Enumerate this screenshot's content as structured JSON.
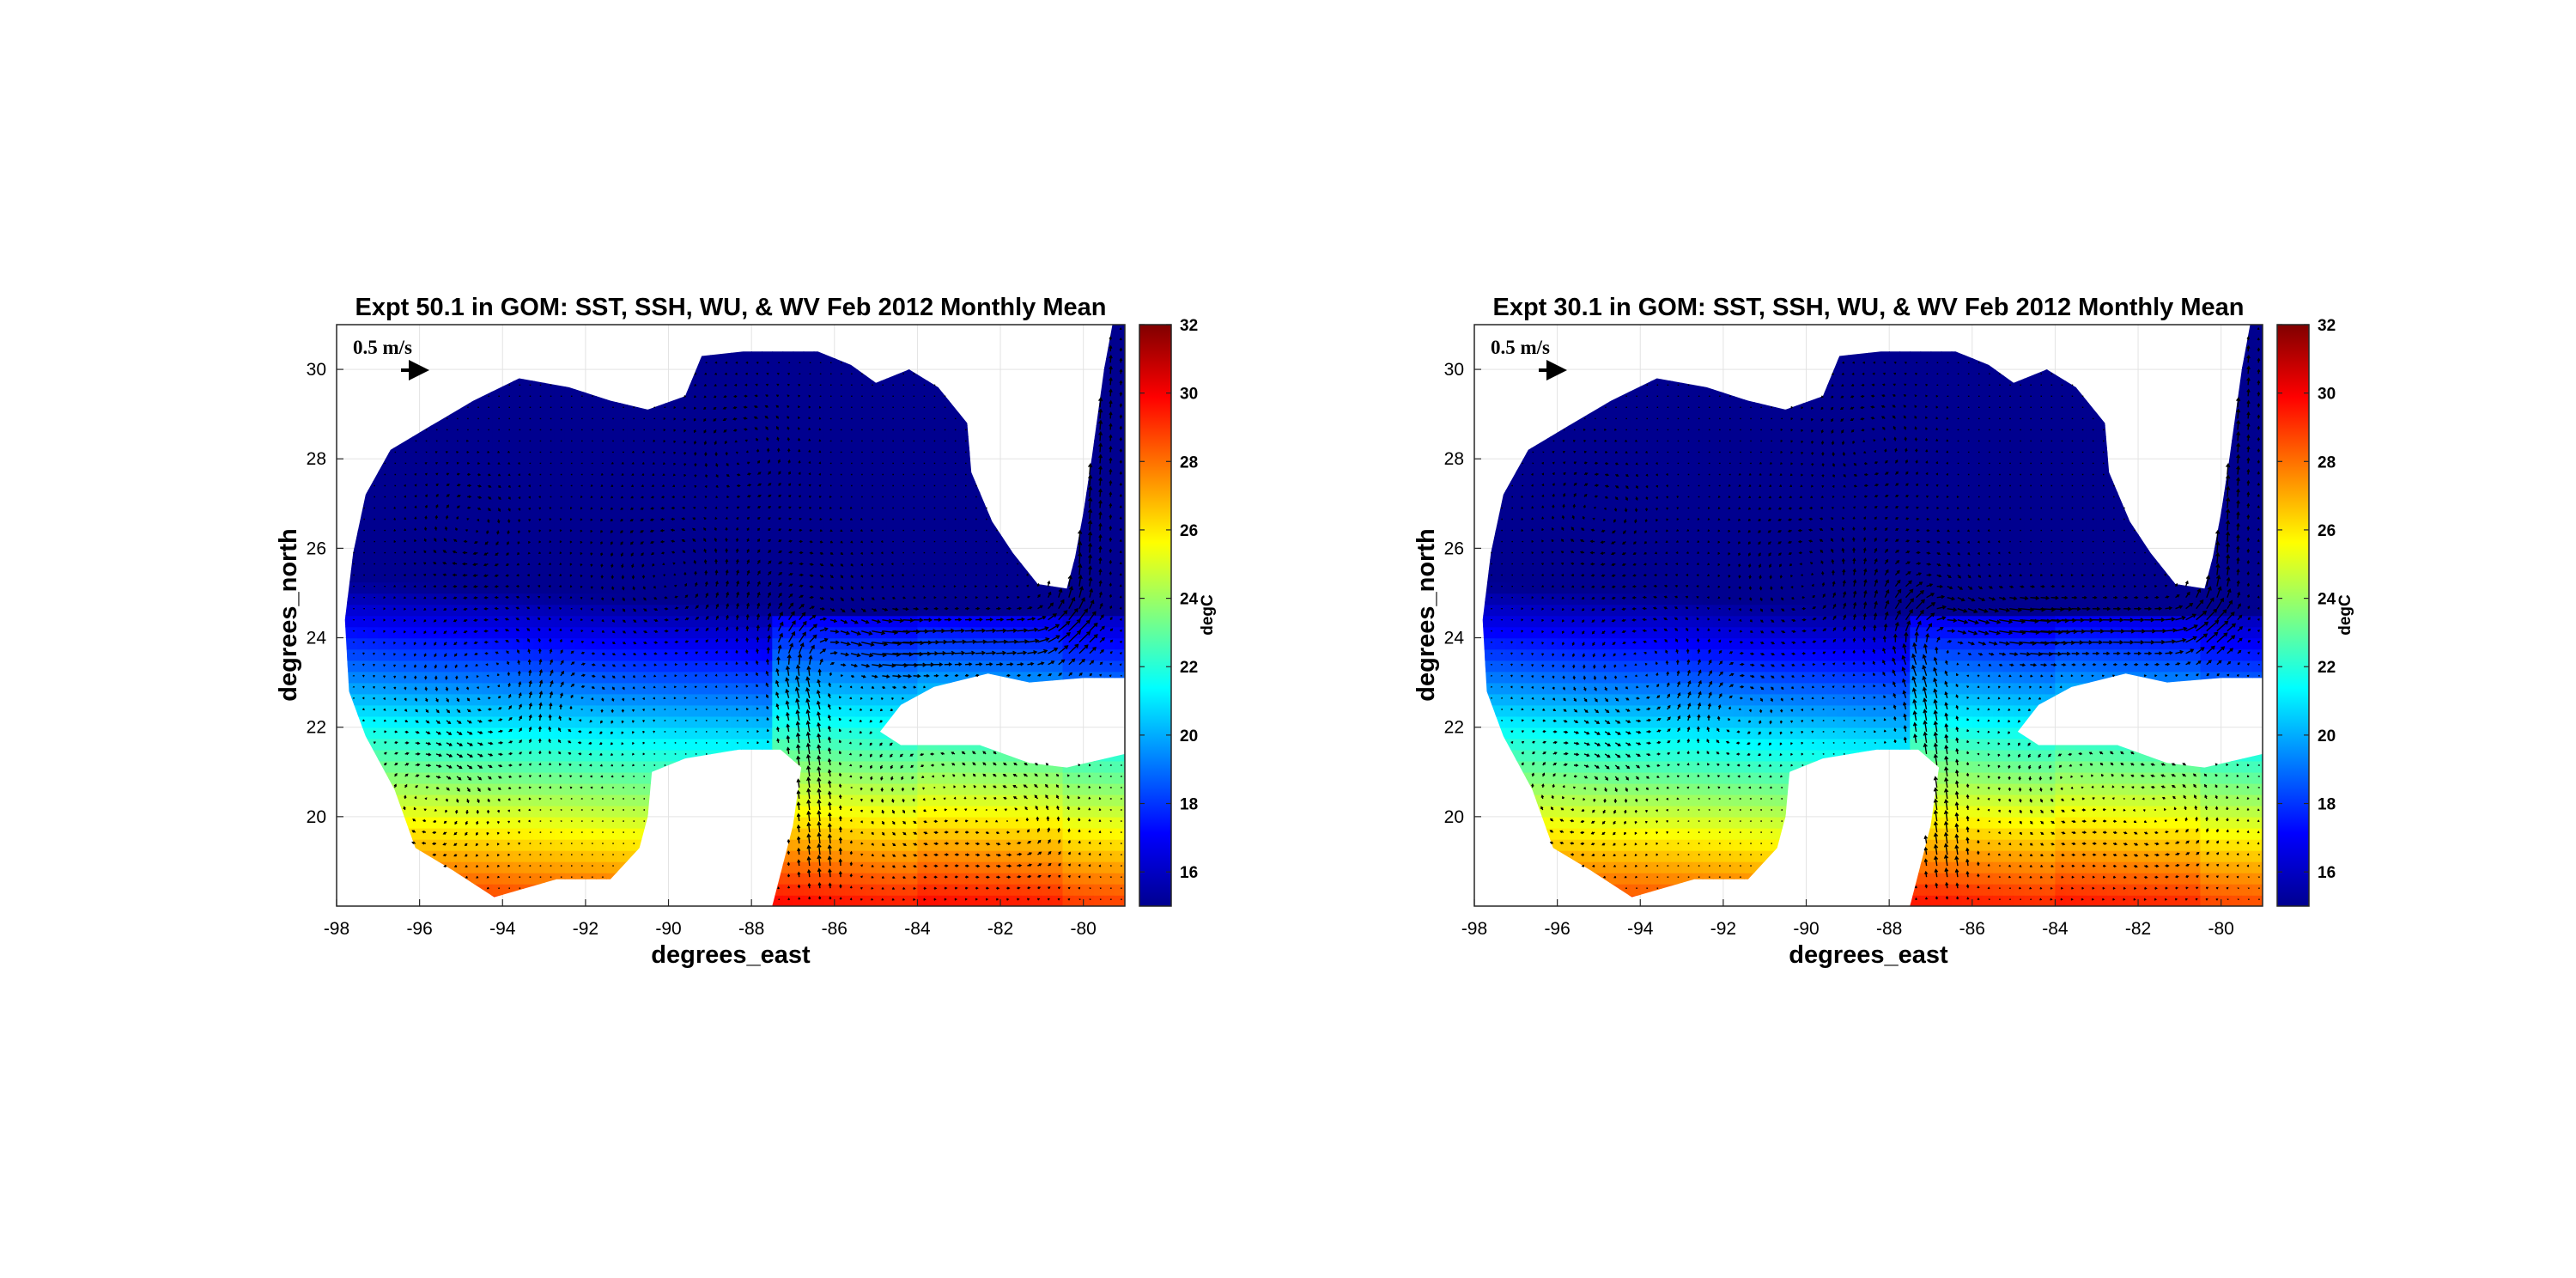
{
  "panels": [
    {
      "id": "expt50",
      "title": "Expt 50.1 in GOM: SST, SSH, WU, & WV Feb 2012 Monthly Mean",
      "scale_label": "0.5 m/s",
      "xlabel": "degrees_east",
      "ylabel": "degrees_north",
      "x_ticks": [
        "-98",
        "-96",
        "-94",
        "-92",
        "-90",
        "-88",
        "-86",
        "-84",
        "-82",
        "-80"
      ],
      "y_ticks": [
        "20",
        "22",
        "24",
        "26",
        "28",
        "30"
      ],
      "colorbar_label": "degC",
      "colorbar_ticks": [
        "16",
        "18",
        "20",
        "22",
        "24",
        "26",
        "28",
        "30",
        "32"
      ]
    },
    {
      "id": "expt30",
      "title": "Expt 30.1 in GOM: SST, SSH, WU, & WV Feb 2012 Monthly Mean",
      "scale_label": "0.5 m/s",
      "xlabel": "degrees_east",
      "ylabel": "degrees_north",
      "x_ticks": [
        "-98",
        "-96",
        "-94",
        "-92",
        "-90",
        "-88",
        "-86",
        "-84",
        "-82",
        "-80"
      ],
      "y_ticks": [
        "20",
        "22",
        "24",
        "26",
        "28",
        "30"
      ],
      "colorbar_label": "degC",
      "colorbar_ticks": [
        "16",
        "18",
        "20",
        "22",
        "24",
        "26",
        "28",
        "30",
        "32"
      ]
    }
  ],
  "map": {
    "lon_range": [
      -98,
      -79
    ],
    "lat_range": [
      18,
      31
    ],
    "colorbar_range": [
      15,
      32
    ],
    "colormap": "jet",
    "colormap_stops": [
      "#00008f",
      "#0000ff",
      "#00ffff",
      "#ffff00",
      "#ff0000",
      "#800000"
    ],
    "ocean_region": "Gulf of Mexico",
    "colorbar_values": [
      15,
      16,
      17,
      18,
      19,
      20,
      21,
      22,
      23,
      24,
      25,
      26,
      27,
      28,
      29,
      30,
      31,
      32
    ]
  }
}
